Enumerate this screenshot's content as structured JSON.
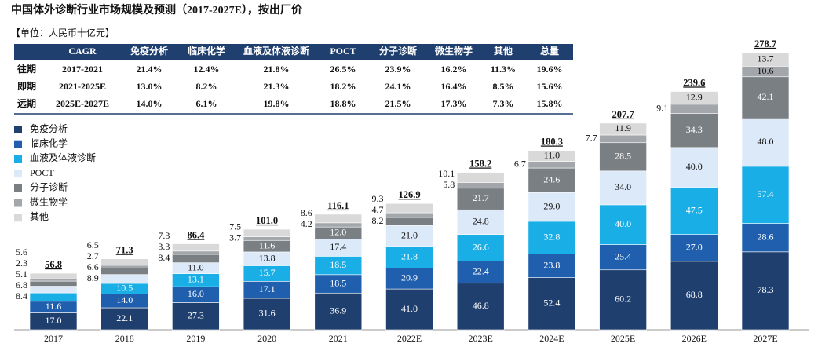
{
  "chart_data": {
    "type": "stacked_bar",
    "title": "中国体外诊断行业市场规模及预测（2017-2027E），按出厂价",
    "unit_label": "【单位：人民币十亿元】",
    "categories": [
      "2017",
      "2018",
      "2019",
      "2020",
      "2021",
      "2022E",
      "2023E",
      "2024E",
      "2025E",
      "2026E",
      "2027E"
    ],
    "ylim": [
      0,
      300
    ],
    "series": [
      {
        "name": "免疫分析",
        "color": "#1f3f6e",
        "values": [
          17.0,
          22.1,
          27.3,
          31.6,
          36.9,
          41.0,
          46.8,
          52.4,
          60.2,
          68.8,
          78.3
        ],
        "value_labels": [
          "17.0",
          "22.1",
          "27.3",
          "31.6",
          "36.9",
          "41.0",
          "46.8",
          "52.4",
          "60.2",
          "68.8",
          "78.3"
        ]
      },
      {
        "name": "临床化学",
        "color": "#1f5fad",
        "values": [
          11.6,
          14.0,
          16.0,
          17.1,
          18.5,
          20.9,
          22.4,
          23.8,
          25.4,
          27.0,
          28.6
        ],
        "value_labels": [
          "11.6",
          "14.0",
          "16.0",
          "17.1",
          "18.5",
          "20.9",
          "22.4",
          "23.8",
          "25.4",
          "27.0",
          "28.6"
        ]
      },
      {
        "name": "血液及体液诊断",
        "color": "#19aee6",
        "values": [
          8.4,
          10.5,
          13.1,
          15.7,
          18.5,
          21.8,
          26.6,
          32.8,
          40.0,
          47.5,
          57.4
        ],
        "value_labels": [
          "8.4",
          "10.5",
          "13.1",
          "15.7",
          "18.5",
          "21.8",
          "26.6",
          "32.8",
          "40.0",
          "47.5",
          "57.4"
        ]
      },
      {
        "name": "POCT",
        "color": "#dce9f8",
        "values": [
          6.8,
          8.9,
          11.0,
          13.8,
          17.4,
          21.0,
          24.8,
          29.0,
          34.0,
          40.0,
          48.0
        ],
        "value_labels": [
          "6.8",
          "8.9",
          "11.0",
          "13.8",
          "17.4",
          "21.0",
          "24.8",
          "29.0",
          "34.0",
          "40.0",
          "48.0"
        ]
      },
      {
        "name": "分子诊断",
        "color": "#7a7f84",
        "values": [
          5.1,
          6.6,
          8.4,
          11.6,
          12.0,
          8.2,
          21.7,
          24.6,
          28.5,
          34.3,
          42.1
        ],
        "value_labels": [
          "5.1",
          "6.6",
          "8.4",
          "11.6",
          "12.0",
          "8.2",
          "21.7",
          "24.6",
          "28.5",
          "34.3",
          "42.1"
        ]
      },
      {
        "name": "微生物学",
        "color": "#a3a7ab",
        "values": [
          2.3,
          2.7,
          3.3,
          3.7,
          4.2,
          4.7,
          5.8,
          6.7,
          7.7,
          9.1,
          10.6
        ],
        "value_labels": [
          "2.3",
          "2.7",
          "3.3",
          "3.7",
          "4.2",
          "4.7",
          "5.8",
          "6.7",
          "7.7",
          "9.1",
          "10.6"
        ]
      },
      {
        "name": "其他",
        "color": "#d9d9d9",
        "values": [
          5.6,
          6.5,
          7.3,
          7.5,
          8.6,
          9.3,
          10.1,
          11.0,
          11.9,
          12.9,
          13.7
        ],
        "value_labels": [
          "5.6",
          "6.5",
          "7.3",
          "7.5",
          "8.6",
          "9.3",
          "10.1",
          "11.0",
          "11.9",
          "12.9",
          "13.7"
        ]
      }
    ],
    "totals": [
      56.8,
      71.3,
      86.4,
      101.0,
      116.1,
      126.9,
      158.2,
      180.3,
      207.7,
      239.6,
      278.7
    ],
    "total_labels": [
      "56.8",
      "71.3",
      "86.4",
      "101.0",
      "116.1",
      "126.9",
      "158.2",
      "180.3",
      "207.7",
      "239.6",
      "278.7"
    ],
    "table": {
      "header": [
        "CAGR",
        "免疫分析",
        "临床化学",
        "血液及体液诊断",
        "POCT",
        "分子诊断",
        "微生物学",
        "其他",
        "总量"
      ],
      "rows": [
        {
          "label": "往期",
          "period": "2017-2021",
          "values": [
            "21.4%",
            "12.4%",
            "21.8%",
            "26.5%",
            "23.9%",
            "16.2%",
            "11.3%",
            "19.6%"
          ]
        },
        {
          "label": "即期",
          "period": "2021-2025E",
          "values": [
            "13.0%",
            "8.2%",
            "21.3%",
            "18.2%",
            "24.1%",
            "16.4%",
            "8.5%",
            "15.6%"
          ]
        },
        {
          "label": "远期",
          "period": "2025E-2027E",
          "values": [
            "14.0%",
            "6.1%",
            "19.8%",
            "18.8%",
            "21.5%",
            "17.3%",
            "7.3%",
            "15.8%"
          ]
        }
      ]
    }
  }
}
